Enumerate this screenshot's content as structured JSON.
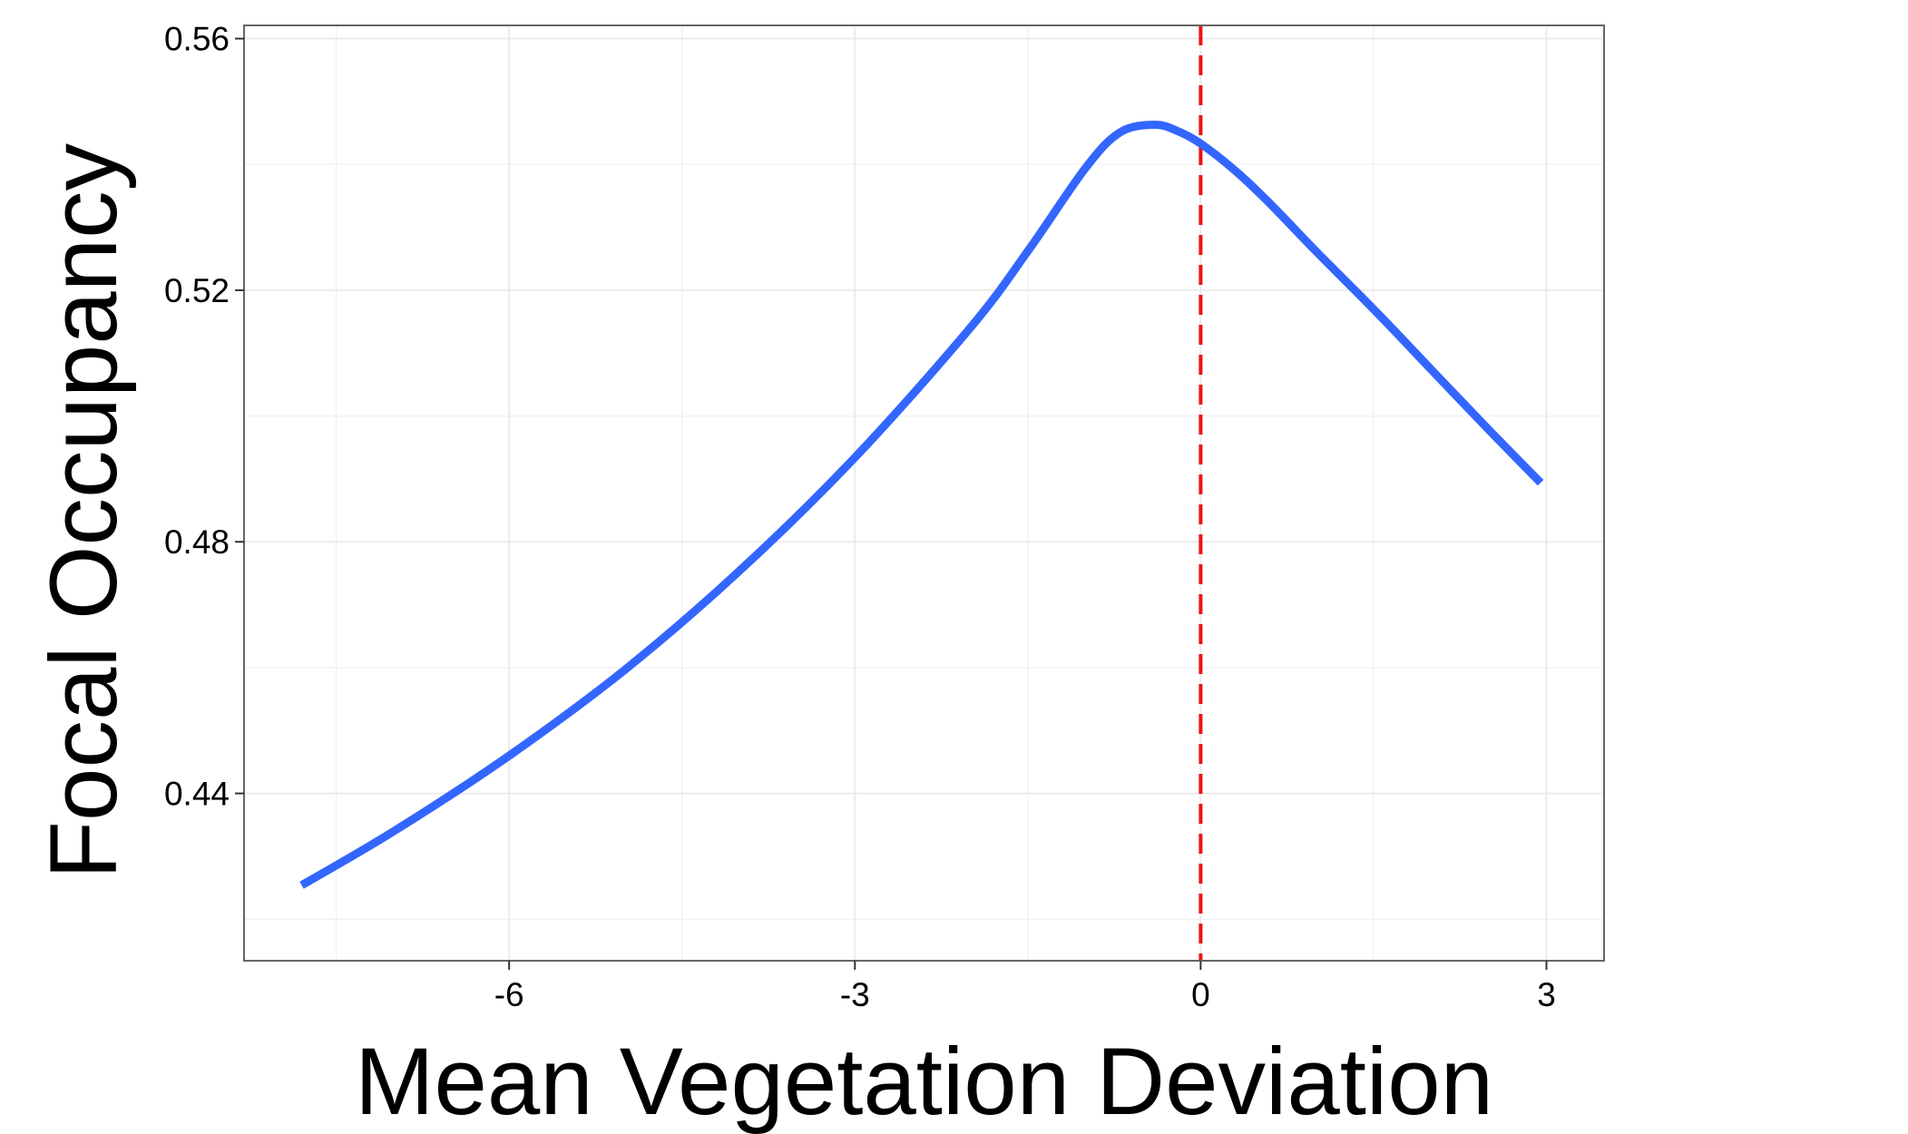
{
  "chart_data": {
    "type": "line",
    "title": "",
    "xlabel": "Mean Vegetation Deviation",
    "ylabel": "Focal Occupancy",
    "xlim": [
      -8.3,
      3.5
    ],
    "ylim": [
      0.4134,
      0.5621
    ],
    "x_ticks": [
      -6,
      -3,
      0,
      3
    ],
    "x_tick_labels": [
      "-6",
      "-3",
      "0",
      "3"
    ],
    "y_ticks": [
      0.44,
      0.48,
      0.52,
      0.56
    ],
    "y_tick_labels": [
      "0.44",
      "0.48",
      "0.52",
      "0.56"
    ],
    "grid": true,
    "legend": "none",
    "reference_line": {
      "axis": "x",
      "value": 0,
      "style": "dashed",
      "color": "#ee1111"
    },
    "series": [
      {
        "color": "#3366ff",
        "x": [
          -7.8,
          -7.0,
          -6.0,
          -5.0,
          -4.0,
          -3.0,
          -2.0,
          -1.5,
          -1.0,
          -0.7,
          -0.4,
          -0.2,
          0.0,
          0.3,
          0.6,
          1.0,
          1.5,
          2.0,
          2.5,
          2.95
        ],
        "y": [
          0.4254,
          0.434,
          0.446,
          0.4596,
          0.4754,
          0.4934,
          0.514,
          0.5262,
          0.5394,
          0.5451,
          0.5463,
          0.5453,
          0.5433,
          0.539,
          0.5338,
          0.5262,
          0.517,
          0.5074,
          0.4978,
          0.4894
        ]
      }
    ]
  }
}
